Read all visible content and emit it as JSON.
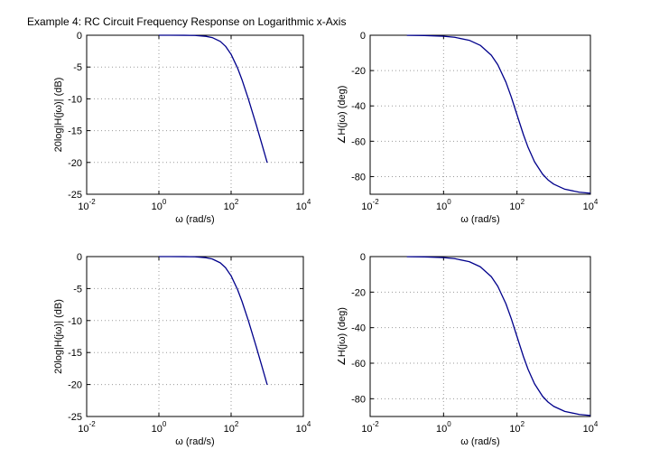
{
  "figure": {
    "title": "Example 4:  RC Circuit Frequency Response on Logarithmic x-Axis"
  },
  "chart_data": [
    {
      "type": "line",
      "panel": "top-left",
      "xlabel": "ω (rad/s)",
      "ylabel": "20log|H(jω)| (dB)",
      "xscale": "log",
      "xlim": [
        0.01,
        10000
      ],
      "ylim": [
        -25,
        0
      ],
      "xticks": [
        {
          "base": "10",
          "exp": "-2"
        },
        {
          "base": "10",
          "exp": "0"
        },
        {
          "base": "10",
          "exp": "2"
        },
        {
          "base": "10",
          "exp": "4"
        }
      ],
      "yticks": [
        "0",
        "-5",
        "-10",
        "-15",
        "-20",
        "-25"
      ],
      "ytick_values": [
        0,
        -5,
        -10,
        -15,
        -20,
        -25
      ],
      "grid": true,
      "line_color": "#00008B",
      "series": [
        {
          "x": [
            1,
            2,
            5,
            10,
            20,
            30,
            50,
            70,
            100,
            150,
            200,
            300,
            500,
            700,
            1000
          ],
          "y": [
            0,
            0,
            -0.01,
            -0.04,
            -0.17,
            -0.37,
            -0.97,
            -1.73,
            -3.01,
            -5.12,
            -6.99,
            -10.0,
            -14.15,
            -16.99,
            -20.04
          ]
        }
      ]
    },
    {
      "type": "line",
      "panel": "top-right",
      "xlabel": "ω (rad/s)",
      "ylabel": "∠H(jω) (deg)",
      "xscale": "log",
      "xlim": [
        0.01,
        10000
      ],
      "ylim": [
        -90,
        0
      ],
      "xticks": [
        {
          "base": "10",
          "exp": "-2"
        },
        {
          "base": "10",
          "exp": "0"
        },
        {
          "base": "10",
          "exp": "2"
        },
        {
          "base": "10",
          "exp": "4"
        }
      ],
      "yticks": [
        "0",
        "-20",
        "-40",
        "-60",
        "-80"
      ],
      "ytick_values": [
        0,
        -20,
        -40,
        -60,
        -80
      ],
      "grid": true,
      "line_color": "#00008B",
      "series": [
        {
          "x": [
            0.1,
            0.3,
            1,
            2,
            5,
            10,
            20,
            30,
            50,
            70,
            100,
            150,
            200,
            300,
            500,
            700,
            1000,
            2000,
            5000,
            10000
          ],
          "y": [
            -0.06,
            -0.17,
            -0.57,
            -1.15,
            -2.86,
            -5.71,
            -11.31,
            -16.7,
            -26.57,
            -34.99,
            -45.0,
            -56.31,
            -63.43,
            -71.57,
            -78.69,
            -81.87,
            -84.29,
            -87.14,
            -88.85,
            -89.43
          ]
        }
      ]
    },
    {
      "type": "line",
      "panel": "bottom-left",
      "xlabel": "ω (rad/s)",
      "ylabel": "20log|H(jω)| (dB)",
      "xscale": "log",
      "xlim": [
        0.01,
        10000
      ],
      "ylim": [
        -25,
        0
      ],
      "xticks": [
        {
          "base": "10",
          "exp": "-2"
        },
        {
          "base": "10",
          "exp": "0"
        },
        {
          "base": "10",
          "exp": "2"
        },
        {
          "base": "10",
          "exp": "4"
        }
      ],
      "yticks": [
        "0",
        "-5",
        "-10",
        "-15",
        "-20",
        "-25"
      ],
      "ytick_values": [
        0,
        -5,
        -10,
        -15,
        -20,
        -25
      ],
      "grid": true,
      "line_color": "#00008B",
      "series": [
        {
          "x": [
            1,
            2,
            5,
            10,
            20,
            30,
            50,
            70,
            100,
            150,
            200,
            300,
            500,
            700,
            1000
          ],
          "y": [
            0,
            0,
            -0.01,
            -0.04,
            -0.17,
            -0.37,
            -0.97,
            -1.73,
            -3.01,
            -5.12,
            -6.99,
            -10.0,
            -14.15,
            -16.99,
            -20.04
          ]
        }
      ]
    },
    {
      "type": "line",
      "panel": "bottom-right",
      "xlabel": "ω (rad/s)",
      "ylabel": "∠H(jω) (deg)",
      "xscale": "log",
      "xlim": [
        0.01,
        10000
      ],
      "ylim": [
        -90,
        0
      ],
      "xticks": [
        {
          "base": "10",
          "exp": "-2"
        },
        {
          "base": "10",
          "exp": "0"
        },
        {
          "base": "10",
          "exp": "2"
        },
        {
          "base": "10",
          "exp": "4"
        }
      ],
      "yticks": [
        "0",
        "-20",
        "-40",
        "-60",
        "-80"
      ],
      "ytick_values": [
        0,
        -20,
        -40,
        -60,
        -80
      ],
      "grid": true,
      "line_color": "#00008B",
      "series": [
        {
          "x": [
            0.1,
            0.3,
            1,
            2,
            5,
            10,
            20,
            30,
            50,
            70,
            100,
            150,
            200,
            300,
            500,
            700,
            1000,
            2000,
            5000,
            10000
          ],
          "y": [
            -0.06,
            -0.17,
            -0.57,
            -1.15,
            -2.86,
            -5.71,
            -11.31,
            -16.7,
            -26.57,
            -34.99,
            -45.0,
            -56.31,
            -63.43,
            -71.57,
            -78.69,
            -81.87,
            -84.29,
            -87.14,
            -88.85,
            -89.43
          ]
        }
      ]
    }
  ]
}
